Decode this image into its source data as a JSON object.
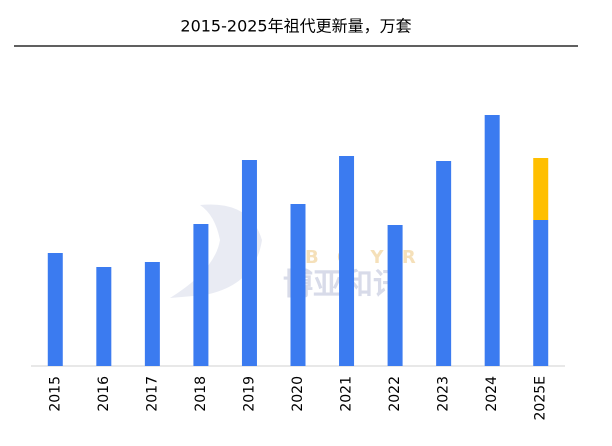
{
  "chart_data": {
    "type": "stacked-bar",
    "title": "2015-2025年祖代更新量，万套",
    "categories": [
      "2015",
      "2016",
      "2017",
      "2018",
      "2019",
      "2020",
      "2021",
      "2022",
      "2023",
      "2024",
      "2025E"
    ],
    "series": [
      {
        "color": "#3b7bf0",
        "values": [
          113,
          99,
          104,
          142,
          206,
          162,
          210,
          141,
          205,
          251,
          146
        ]
      },
      {
        "color": "#ffbf00",
        "values": [
          null,
          null,
          null,
          null,
          null,
          null,
          null,
          null,
          null,
          null,
          62
        ]
      }
    ],
    "ylim": [
      0,
      260
    ],
    "watermark": {
      "latin": "B O Y R",
      "chinese": "博亚和讯"
    }
  }
}
